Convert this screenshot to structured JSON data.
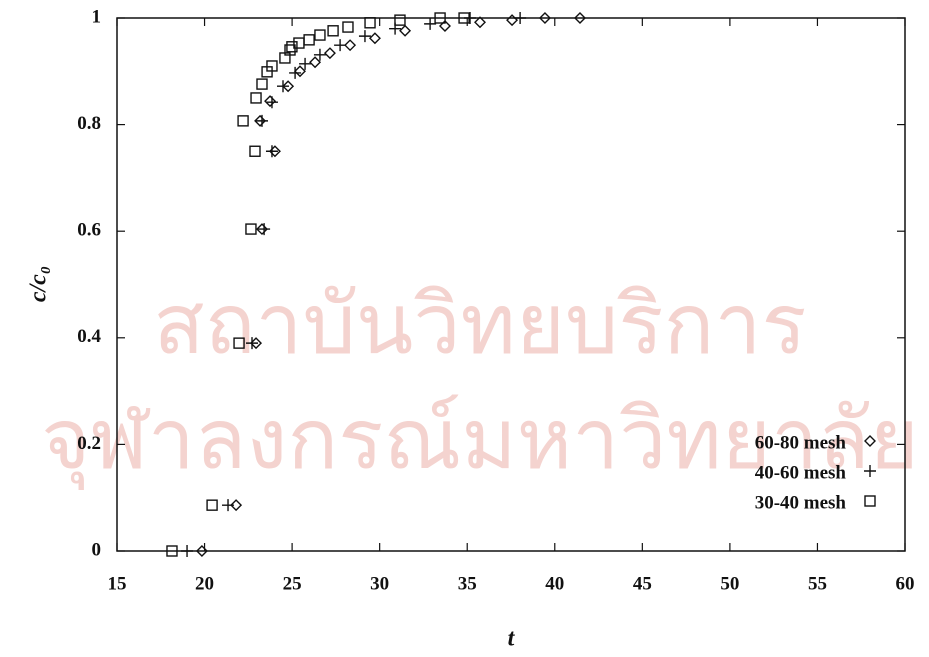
{
  "chart_data": {
    "type": "scatter",
    "x_label": "t",
    "y_label": "c/c₀",
    "watermark": [
      "สถาบันวิทยบริการ",
      "จุฬาลงกรณ์มหาวิทยาลัย"
    ],
    "xlim": [
      15,
      60
    ],
    "ylim": [
      0,
      1
    ],
    "xticks": [
      15,
      20,
      25,
      30,
      35,
      40,
      45,
      50,
      55,
      60
    ],
    "yticks": [
      0,
      0.2,
      0.4,
      0.6,
      0.8,
      1
    ],
    "legend": "lower right",
    "series": [
      {
        "name": "60-80 mesh",
        "marker": "diamond",
        "color": "#111111",
        "x": [
          19.85,
          21.8,
          22.94,
          23.28,
          24.02,
          23.17,
          23.74,
          24.77,
          25.45,
          26.31,
          27.16,
          28.31,
          29.73,
          31.45,
          33.73,
          35.73,
          37.56,
          39.44,
          41.44
        ],
        "values": [
          0,
          0.086,
          0.39,
          0.604,
          0.75,
          0.807,
          0.844,
          0.872,
          0.9,
          0.917,
          0.934,
          0.949,
          0.962,
          0.976,
          0.985,
          0.992,
          0.996,
          1,
          1
        ]
      },
      {
        "name": "40-60 mesh",
        "marker": "plus",
        "color": "#111111",
        "x": [
          19.0,
          21.34,
          22.71,
          23.4,
          23.85,
          23.28,
          23.85,
          24.48,
          25.17,
          25.74,
          26.59,
          27.74,
          29.16,
          30.88,
          32.88,
          35.16,
          38.02
        ],
        "values": [
          0,
          0.086,
          0.39,
          0.604,
          0.75,
          0.807,
          0.842,
          0.872,
          0.897,
          0.914,
          0.931,
          0.949,
          0.966,
          0.98,
          0.989,
          1,
          1
        ]
      },
      {
        "name": "30-40 mesh",
        "marker": "square",
        "color": "#111111",
        "x": [
          18.14,
          20.43,
          21.97,
          22.65,
          22.88,
          22.2,
          22.94,
          23.28,
          23.57,
          23.85,
          24.59,
          24.88,
          24.99,
          25.39,
          25.97,
          26.59,
          27.34,
          28.19,
          29.45,
          31.16,
          33.45,
          34.82
        ],
        "values": [
          0,
          0.086,
          0.39,
          0.604,
          0.75,
          0.807,
          0.85,
          0.876,
          0.899,
          0.91,
          0.925,
          0.94,
          0.946,
          0.953,
          0.959,
          0.968,
          0.976,
          0.983,
          0.991,
          0.996,
          1,
          1
        ]
      }
    ]
  }
}
